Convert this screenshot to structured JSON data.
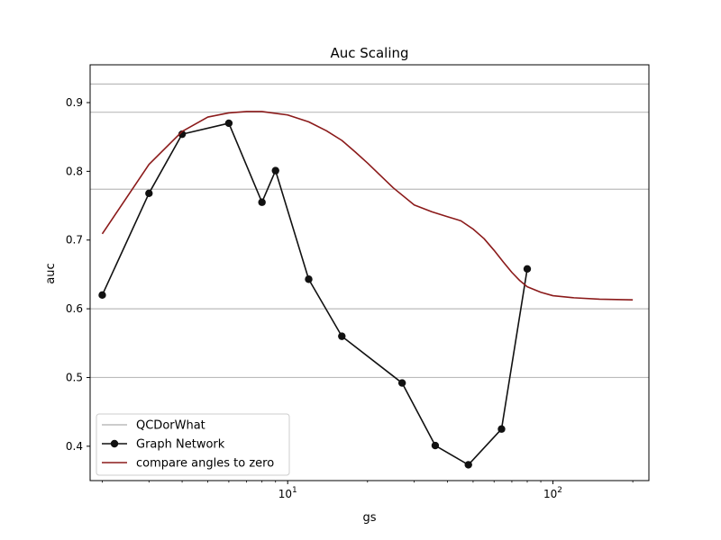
{
  "chart_data": {
    "type": "line",
    "title": "Auc Scaling",
    "xlabel": "gs",
    "ylabel": "auc",
    "xscale": "log",
    "xlim": [
      1.8,
      230
    ],
    "ylim": [
      0.35,
      0.955
    ],
    "x_ticks": [
      {
        "value": 10,
        "base": "10",
        "exp": "1"
      },
      {
        "value": 100,
        "base": "10",
        "exp": "2"
      }
    ],
    "y_ticks": [
      0.4,
      0.5,
      0.6,
      0.7,
      0.8,
      0.9
    ],
    "y_tick_labels": [
      "0.4",
      "0.5",
      "0.6",
      "0.7",
      "0.8",
      "0.9"
    ],
    "reference_lines": {
      "name": "QCDorWhat",
      "color": "#bbbbbb",
      "values": [
        0.927,
        0.886,
        0.774,
        0.6,
        0.5
      ]
    },
    "series": [
      {
        "name": "Graph Network",
        "color": "#111111",
        "marker": "circle",
        "x": [
          2,
          3,
          4,
          6,
          8,
          9,
          12,
          16,
          27,
          36,
          48,
          64,
          80
        ],
        "y": [
          0.62,
          0.768,
          0.854,
          0.87,
          0.755,
          0.801,
          0.643,
          0.56,
          0.492,
          0.401,
          0.373,
          0.425,
          0.658
        ]
      },
      {
        "name": "compare angles to zero",
        "color": "#8b1a1a",
        "marker": "none",
        "x": [
          2,
          3,
          4,
          5,
          6,
          7,
          8,
          10,
          12,
          14,
          16,
          18,
          20,
          25,
          30,
          35,
          40,
          45,
          50,
          55,
          60,
          65,
          70,
          75,
          80,
          90,
          100,
          120,
          150,
          200
        ],
        "y": [
          0.709,
          0.81,
          0.858,
          0.879,
          0.885,
          0.887,
          0.887,
          0.882,
          0.872,
          0.859,
          0.845,
          0.828,
          0.812,
          0.776,
          0.751,
          0.741,
          0.734,
          0.728,
          0.716,
          0.702,
          0.685,
          0.668,
          0.653,
          0.641,
          0.632,
          0.624,
          0.619,
          0.616,
          0.614,
          0.613
        ]
      }
    ],
    "legend": {
      "placement": "lower-left",
      "entries": [
        "QCDorWhat",
        "Graph Network",
        "compare angles to zero"
      ]
    },
    "grid": false
  }
}
